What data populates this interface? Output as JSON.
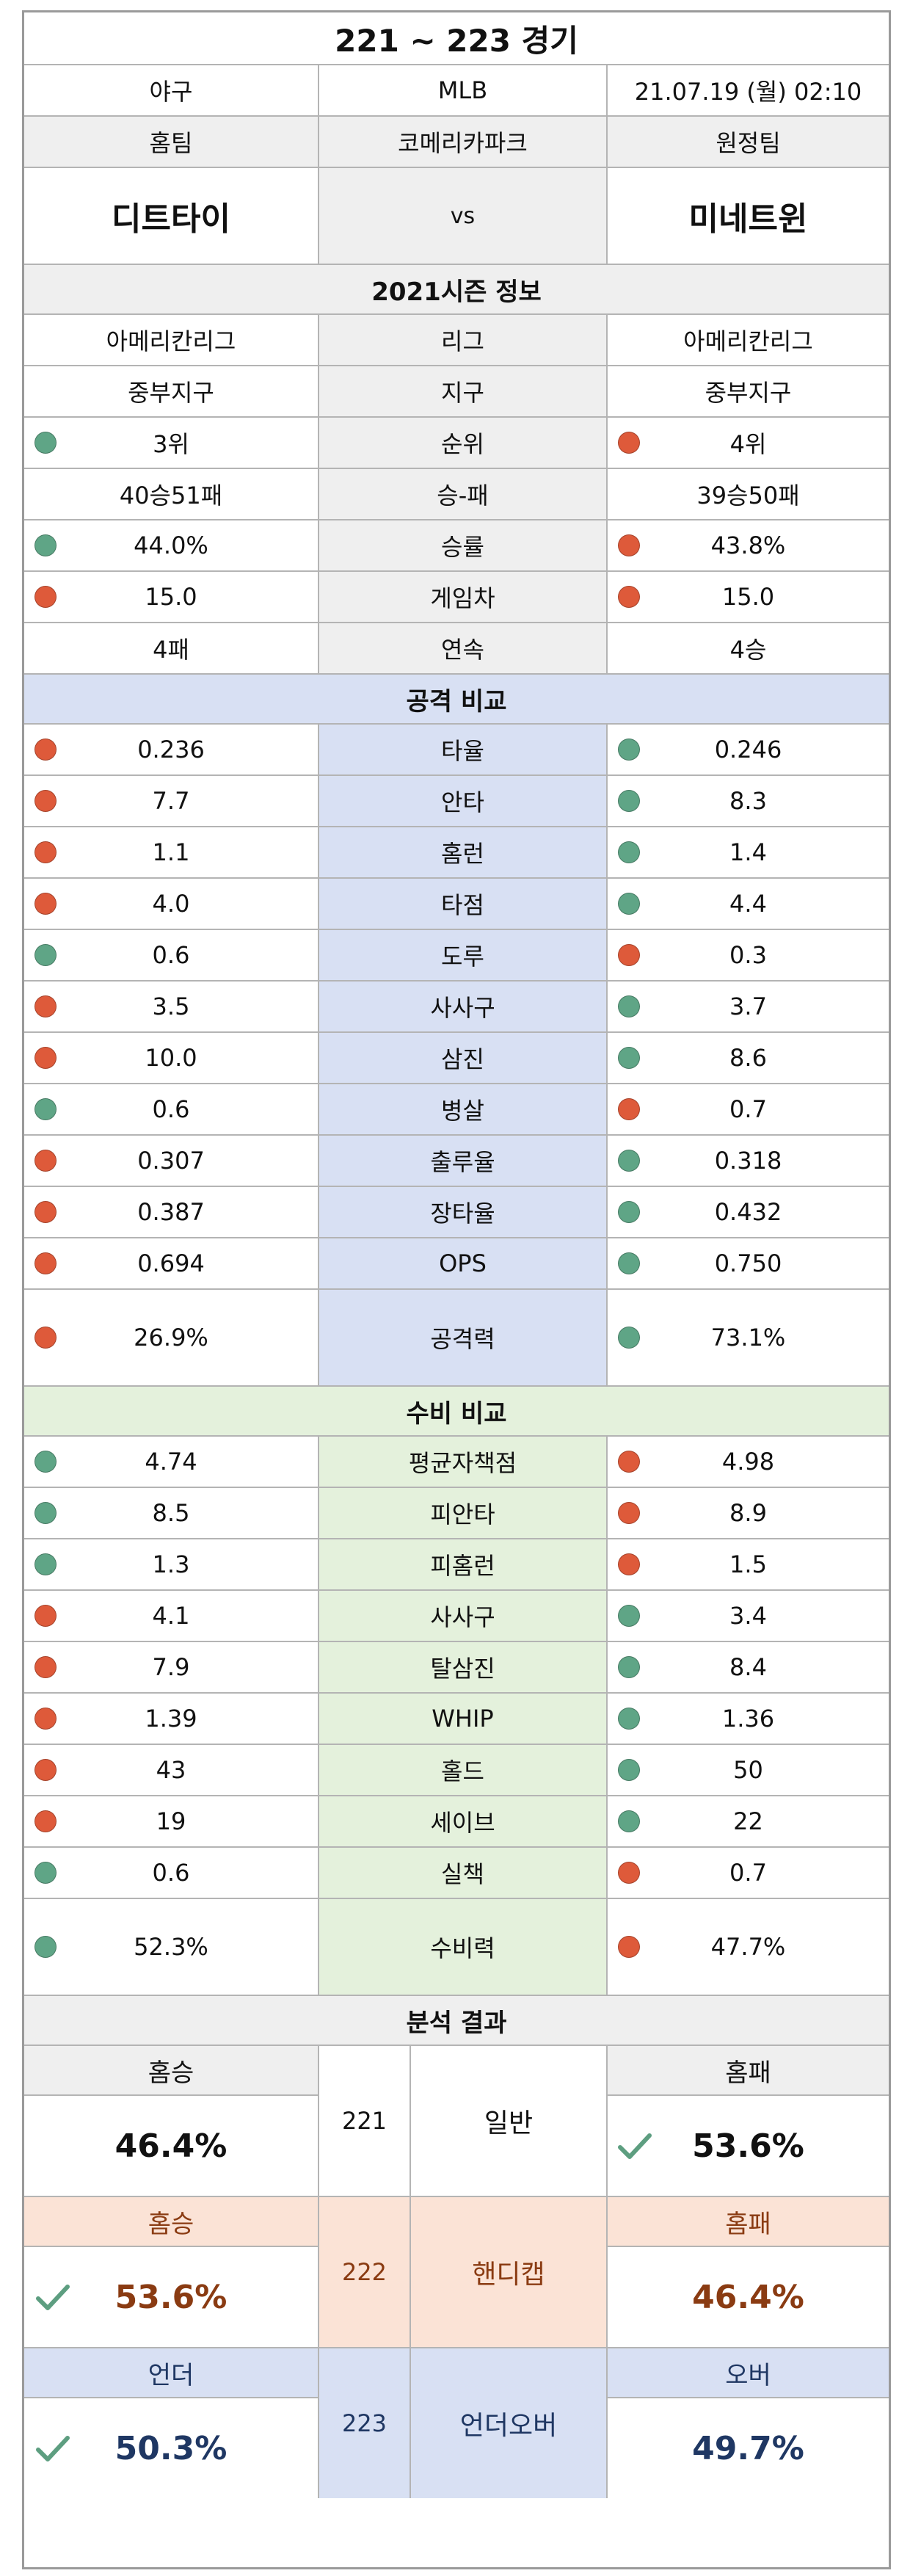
{
  "title": "221 ~ 223 경기",
  "info": {
    "sport": "야구",
    "league": "MLB",
    "datetime": "21.07.19 (월) 02:10"
  },
  "teams_header": {
    "home_label": "홈팀",
    "stadium": "코메리카파크",
    "away_label": "원정팀"
  },
  "teams": {
    "home": "디트타이",
    "vs": "vs",
    "away": "미네트윈"
  },
  "colors": {
    "good": "#5fa586",
    "bad": "#de5a3a",
    "attack_bg": "#d8e0f3",
    "defense_bg": "#e4f1dc",
    "handicap_bg": "#fbe3d6",
    "header_bg": "#efefef"
  },
  "season": {
    "title": "2021시즌 정보",
    "rows": [
      {
        "home": "아메리칸리그",
        "label": "리그",
        "away": "아메리칸리그",
        "home_dot": "",
        "away_dot": ""
      },
      {
        "home": "중부지구",
        "label": "지구",
        "away": "중부지구",
        "home_dot": "",
        "away_dot": ""
      },
      {
        "home": "3위",
        "label": "순위",
        "away": "4위",
        "home_dot": "green",
        "away_dot": "red"
      },
      {
        "home": "40승51패",
        "label": "승-패",
        "away": "39승50패",
        "home_dot": "",
        "away_dot": ""
      },
      {
        "home": "44.0%",
        "label": "승률",
        "away": "43.8%",
        "home_dot": "green",
        "away_dot": "red"
      },
      {
        "home": "15.0",
        "label": "게임차",
        "away": "15.0",
        "home_dot": "red",
        "away_dot": "red"
      },
      {
        "home": "4패",
        "label": "연속",
        "away": "4승",
        "home_dot": "",
        "away_dot": ""
      }
    ]
  },
  "attack": {
    "title": "공격 비교",
    "rows": [
      {
        "home": "0.236",
        "label": "타율",
        "away": "0.246",
        "home_dot": "red",
        "away_dot": "green"
      },
      {
        "home": "7.7",
        "label": "안타",
        "away": "8.3",
        "home_dot": "red",
        "away_dot": "green"
      },
      {
        "home": "1.1",
        "label": "홈런",
        "away": "1.4",
        "home_dot": "red",
        "away_dot": "green"
      },
      {
        "home": "4.0",
        "label": "타점",
        "away": "4.4",
        "home_dot": "red",
        "away_dot": "green"
      },
      {
        "home": "0.6",
        "label": "도루",
        "away": "0.3",
        "home_dot": "green",
        "away_dot": "red"
      },
      {
        "home": "3.5",
        "label": "사사구",
        "away": "3.7",
        "home_dot": "red",
        "away_dot": "green"
      },
      {
        "home": "10.0",
        "label": "삼진",
        "away": "8.6",
        "home_dot": "red",
        "away_dot": "green"
      },
      {
        "home": "0.6",
        "label": "병살",
        "away": "0.7",
        "home_dot": "green",
        "away_dot": "red"
      },
      {
        "home": "0.307",
        "label": "출루율",
        "away": "0.318",
        "home_dot": "red",
        "away_dot": "green"
      },
      {
        "home": "0.387",
        "label": "장타율",
        "away": "0.432",
        "home_dot": "red",
        "away_dot": "green"
      },
      {
        "home": "0.694",
        "label": "OPS",
        "away": "0.750",
        "home_dot": "red",
        "away_dot": "green"
      }
    ],
    "total": {
      "home": "26.9%",
      "label": "공격력",
      "away": "73.1%",
      "home_dot": "red",
      "away_dot": "green"
    }
  },
  "defense": {
    "title": "수비 비교",
    "rows": [
      {
        "home": "4.74",
        "label": "평균자책점",
        "away": "4.98",
        "home_dot": "green",
        "away_dot": "red"
      },
      {
        "home": "8.5",
        "label": "피안타",
        "away": "8.9",
        "home_dot": "green",
        "away_dot": "red"
      },
      {
        "home": "1.3",
        "label": "피홈런",
        "away": "1.5",
        "home_dot": "green",
        "away_dot": "red"
      },
      {
        "home": "4.1",
        "label": "사사구",
        "away": "3.4",
        "home_dot": "red",
        "away_dot": "green"
      },
      {
        "home": "7.9",
        "label": "탈삼진",
        "away": "8.4",
        "home_dot": "red",
        "away_dot": "green"
      },
      {
        "home": "1.39",
        "label": "WHIP",
        "away": "1.36",
        "home_dot": "red",
        "away_dot": "green"
      },
      {
        "home": "43",
        "label": "홀드",
        "away": "50",
        "home_dot": "red",
        "away_dot": "green"
      },
      {
        "home": "19",
        "label": "세이브",
        "away": "22",
        "home_dot": "red",
        "away_dot": "green"
      },
      {
        "home": "0.6",
        "label": "실책",
        "away": "0.7",
        "home_dot": "green",
        "away_dot": "red"
      }
    ],
    "total": {
      "home": "52.3%",
      "label": "수비력",
      "away": "47.7%",
      "home_dot": "green",
      "away_dot": "red"
    }
  },
  "analysis": {
    "title": "분석 결과",
    "blocks": [
      {
        "game": "221",
        "type": "일반",
        "home_label": "홈승",
        "home_value": "46.4%",
        "away_label": "홈패",
        "away_value": "53.6%",
        "pick": "away",
        "style": "normal"
      },
      {
        "game": "222",
        "type": "핸디캡",
        "home_label": "홈승",
        "home_value": "53.6%",
        "away_label": "홈패",
        "away_value": "46.4%",
        "pick": "home",
        "style": "handicap"
      },
      {
        "game": "223",
        "type": "언더오버",
        "home_label": "언더",
        "home_value": "50.3%",
        "away_label": "오버",
        "away_value": "49.7%",
        "pick": "home",
        "style": "underover"
      }
    ]
  }
}
